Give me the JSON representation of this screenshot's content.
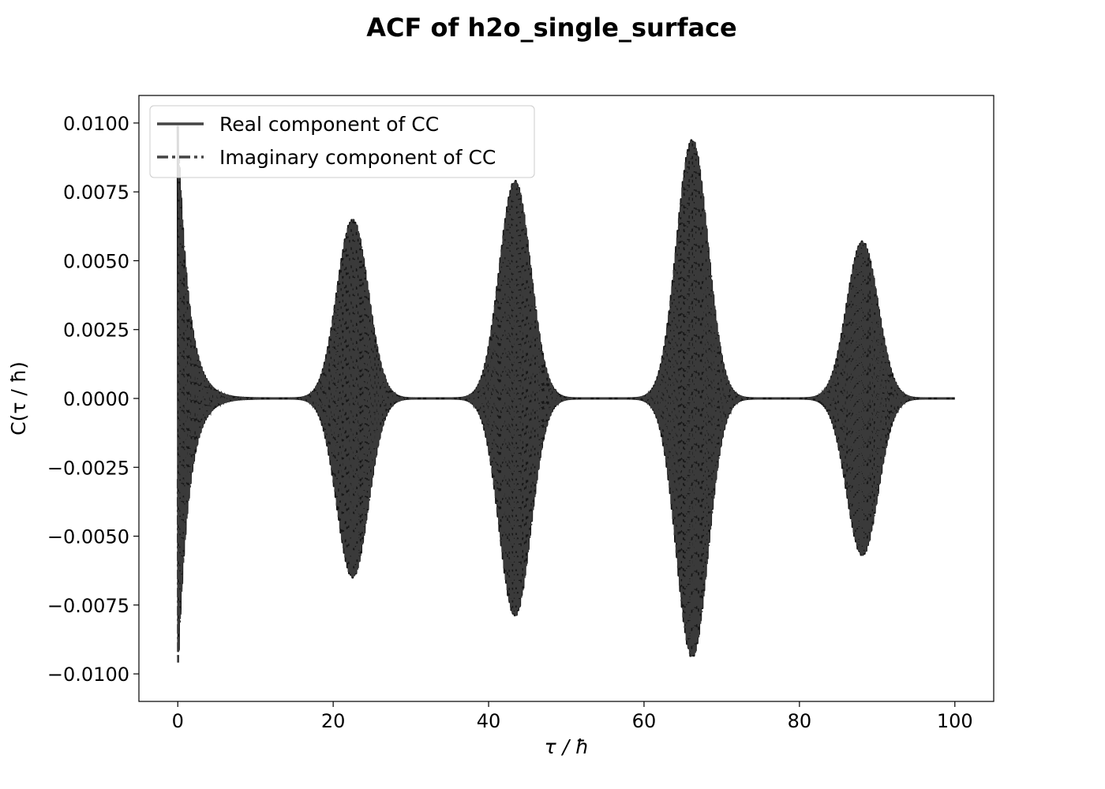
{
  "chart_data": {
    "type": "line",
    "title": "ACF of h2o_single_surface",
    "xlabel": "τ / ħ",
    "ylabel": "C(τ / ħ)",
    "xlim": [
      -5,
      105
    ],
    "ylim": [
      -0.011,
      0.011
    ],
    "x_ticks": [
      0,
      20,
      40,
      60,
      80,
      100
    ],
    "x_tick_labels": [
      "0",
      "20",
      "40",
      "60",
      "80",
      "100"
    ],
    "y_ticks": [
      0.01,
      0.0075,
      0.005,
      0.0025,
      0.0,
      -0.0025,
      -0.005,
      -0.0075,
      -0.01
    ],
    "y_tick_labels": [
      "0.0100",
      "0.0075",
      "0.0050",
      "0.0025",
      "0.0000",
      "−0.0025",
      "−0.0050",
      "−0.0075",
      "−0.0100"
    ],
    "grid": false,
    "legend_position": "top-left",
    "x_range": [
      0,
      100
    ],
    "series": [
      {
        "name": "Real component of CC",
        "linestyle": "solid",
        "color": "#161616"
      },
      {
        "name": "Imaginary component of CC",
        "linestyle": "dashdot",
        "color": "#3a3a3a"
      }
    ],
    "envelope": {
      "description_of_bursts": "peak time and amplitude of each recurrence",
      "peaks": [
        {
          "x": 0.0,
          "amplitude": 0.0099
        },
        {
          "x": 22.5,
          "amplitude": 0.0065
        },
        {
          "x": 43.4,
          "amplitude": 0.0079
        },
        {
          "x": 66.2,
          "amplitude": 0.0094
        },
        {
          "x": 88.1,
          "amplitude": 0.0057
        }
      ]
    }
  }
}
